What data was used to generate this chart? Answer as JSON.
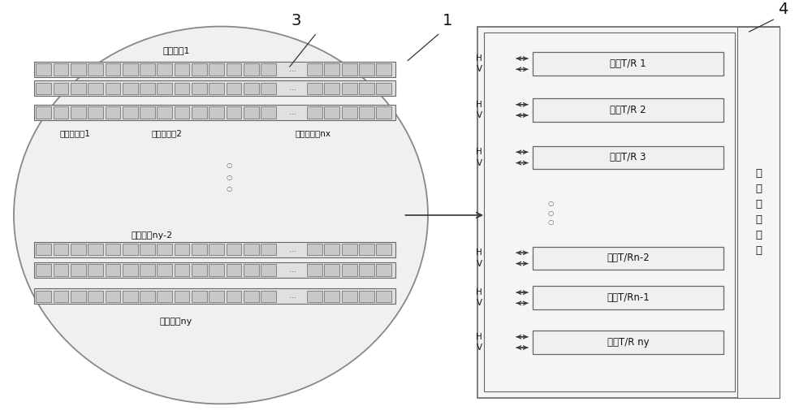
{
  "bg_color": "#ffffff",
  "ellipse_fill": "#f0f0f0",
  "ellipse_edge": "#888888",
  "row_box_fill": "#e0e0e0",
  "row_box_edge": "#666666",
  "cell_fill": "#c8c8c8",
  "cell_edge": "#666666",
  "tr_box_fill": "#f0f0f0",
  "tr_box_edge": "#666666",
  "outer_box_fill": "#f5f5f5",
  "outer_box_edge": "#666666",
  "right_strip_fill": "#f5f5f5",
  "right_strip_edge": "#666666",
  "arrow_color": "#333333",
  "text_color": "#111111",
  "label1": "水平行馈1",
  "label_ny2": "水平行馈ny-2",
  "label_ny": "水平行馈ny",
  "label_sub1": "行馈内子阵1",
  "label_sub2": "行馈内子阵2",
  "label_subnx": "行馈内子阵nx",
  "tr_labels": [
    "数字T/R 1",
    "数字T/R 2",
    "数字T/R 3",
    "数字T/Rn-2",
    "数字T/Rn-1",
    "数字T/R ny"
  ],
  "right_label": "数\n字\n传\n输\n网\n络",
  "num1": "1",
  "num3": "3",
  "num4": "4"
}
